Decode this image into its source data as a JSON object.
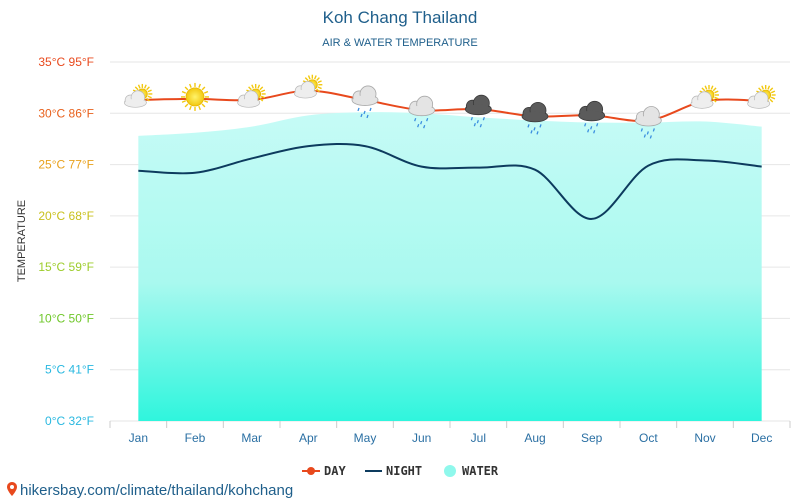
{
  "header": {
    "title": "Koh Chang Thailand",
    "subtitle": "AIR & WATER TEMPERATURE"
  },
  "footer": {
    "source": "hikersbay.com/climate/thailand/kohchang"
  },
  "colors": {
    "day": "#e8491d",
    "night": "#0d3b5e",
    "water_top": "#c6fbf6",
    "water_bottom": "#2ff5dd",
    "title": "#1f5f8b"
  },
  "chart_data": {
    "type": "line",
    "title": "Koh Chang Thailand",
    "subtitle": "AIR & WATER TEMPERATURE",
    "ylabel": "TEMPERATURE",
    "xlabel": "",
    "ylim": [
      0,
      35
    ],
    "grid": true,
    "legend_position": "bottom",
    "categories": [
      "Jan",
      "Feb",
      "Mar",
      "Apr",
      "May",
      "Jun",
      "Jul",
      "Aug",
      "Sep",
      "Oct",
      "Nov",
      "Dec"
    ],
    "yticks": [
      {
        "value": 0,
        "label": "0°C 32°F",
        "color": "#29b8e0"
      },
      {
        "value": 5,
        "label": "5°C 41°F",
        "color": "#29b8e0"
      },
      {
        "value": 10,
        "label": "10°C 50°F",
        "color": "#6fc72a"
      },
      {
        "value": 15,
        "label": "15°C 59°F",
        "color": "#9ccc2a"
      },
      {
        "value": 20,
        "label": "20°C 68°F",
        "color": "#c8c01d"
      },
      {
        "value": 25,
        "label": "25°C 77°F",
        "color": "#e8a11d"
      },
      {
        "value": 30,
        "label": "30°C 86°F",
        "color": "#e8611d"
      },
      {
        "value": 35,
        "label": "35°C 95°F",
        "color": "#e8491d"
      }
    ],
    "series": [
      {
        "name": "DAY",
        "values": [
          31.3,
          31.4,
          31.3,
          32.2,
          31.3,
          30.3,
          30.4,
          29.7,
          29.8,
          29.3,
          31.2,
          31.2
        ]
      },
      {
        "name": "NIGHT",
        "values": [
          24.4,
          24.2,
          25.6,
          26.8,
          26.8,
          24.8,
          24.7,
          24.5,
          19.7,
          24.9,
          25.4,
          24.8
        ]
      },
      {
        "name": "WATER",
        "values": [
          27.8,
          28.1,
          28.7,
          29.8,
          30.1,
          30.0,
          29.6,
          29.3,
          29.1,
          29.1,
          29.2,
          28.7
        ]
      }
    ],
    "weather_icons": [
      "partly-cloudy",
      "sunny",
      "partly-cloudy",
      "partly-cloudy",
      "cloudy-rain",
      "cloudy-rain",
      "dark-cloud-rain",
      "dark-cloud-rain",
      "dark-cloud-rain",
      "cloudy-rain",
      "partly-cloudy",
      "partly-cloudy"
    ]
  }
}
